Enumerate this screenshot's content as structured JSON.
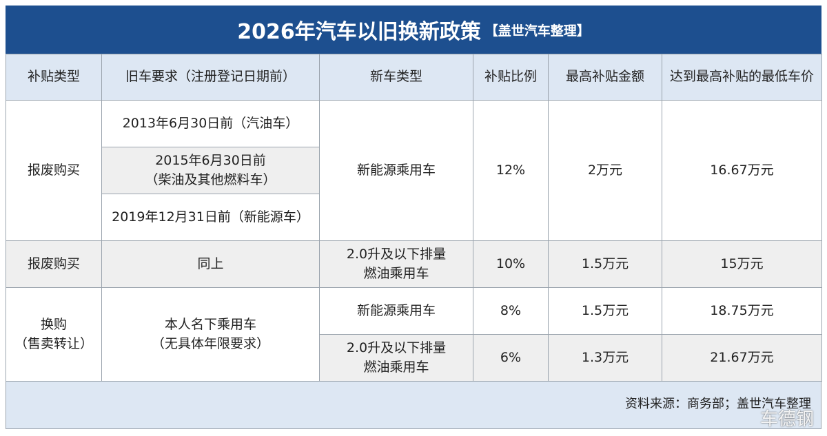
{
  "header": {
    "title": "2026年汽车以旧换新政策",
    "note": "【盖世汽车整理】"
  },
  "table": {
    "columns": [
      "补贴类型",
      "旧车要求（注册登记日期前）",
      "新车类型",
      "补贴比例",
      "最高补贴金额",
      "达到最高补贴的最低车价"
    ],
    "groups": [
      {
        "type": "报废购买",
        "old_car": [
          "2013年6月30日前（汽油车）",
          "2015年6月30日前\n（柴油及其他燃料车）",
          "2019年12月31日前（新能源车）"
        ],
        "new_car": "新能源乘用车",
        "ratio": "12%",
        "max": "2万元",
        "min_price": "16.67万元"
      },
      {
        "type": "报废购买",
        "old_car": "同上",
        "new_car": "2.0升及以下排量\n燃油乘用车",
        "ratio": "10%",
        "max": "1.5万元",
        "min_price": "15万元"
      },
      {
        "type": "换购\n（售卖转让）",
        "old_car": "本人名下乘用车\n（无具体年限要求）",
        "rows": [
          {
            "new_car": "新能源乘用车",
            "ratio": "8%",
            "max": "1.5万元",
            "min_price": "18.75万元"
          },
          {
            "new_car": "2.0升及以下排量\n燃油乘用车",
            "ratio": "6%",
            "max": "1.3万元",
            "min_price": "21.67万元"
          }
        ]
      }
    ]
  },
  "footer": {
    "source": "资料来源：商务部；盖世汽车整理",
    "watermark": "车德钢"
  }
}
